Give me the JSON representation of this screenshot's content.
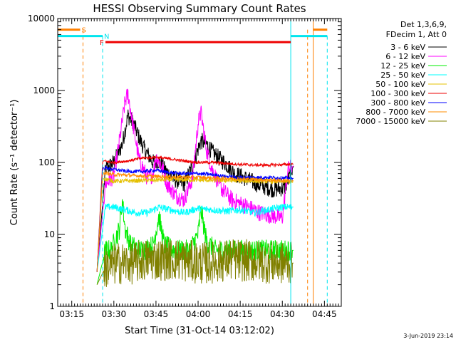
{
  "chart_data": {
    "type": "line",
    "title": "HESSI Observing Summary Count Rates",
    "xlabel": "Start Time (31-Oct-14 03:12:02)",
    "ylabel": "Count Rate (s⁻¹ detector⁻¹)",
    "yscale": "log",
    "xlim": [
      "03:10",
      "04:51"
    ],
    "ylim": [
      1,
      10000
    ],
    "x_ticks": [
      "03:15",
      "03:30",
      "03:45",
      "04:00",
      "04:15",
      "04:30",
      "04:45"
    ],
    "y_ticks": [
      "1",
      "10",
      "100",
      "1000",
      "10000"
    ],
    "legend_header": [
      "Det 1,3,6,9,",
      "FDecim 1, Att 0"
    ],
    "legend_position": "right",
    "footer_date": "3-Jun-2019 23:14",
    "flags": [
      {
        "label": "S",
        "color": "#ff7f00",
        "segments": [
          [
            "03:10",
            "03:18"
          ],
          [
            "04:41",
            "04:46"
          ]
        ],
        "y": 7000,
        "marker_lines": [
          "03:19",
          "04:39"
        ],
        "marker_style": "dashed"
      },
      {
        "label": "N",
        "color": "#00e5ee",
        "segments": [
          [
            "03:10",
            "03:26"
          ],
          [
            "04:33",
            "04:46"
          ]
        ],
        "y": 5700,
        "marker_lines": [
          "03:26",
          "04:46"
        ],
        "marker_style": "dashed"
      },
      {
        "label": "F",
        "color": "#ee0000",
        "segments": [
          [
            "03:27",
            "04:33"
          ]
        ],
        "y": 4700,
        "marker_lines": [],
        "marker_style": "solid"
      }
    ],
    "boundaries": [
      {
        "x": "03:10",
        "color": "#00e5ee"
      },
      {
        "x": "04:33",
        "color": "#00e5ee"
      },
      {
        "x": "04:41",
        "color": "#ff7f00"
      }
    ],
    "series": [
      {
        "name": "3 - 6 keV",
        "color": "#000000",
        "noise": 0.12,
        "x": [
          "03:24",
          "03:27",
          "03:30",
          "03:33",
          "03:35",
          "03:37",
          "03:39",
          "03:41",
          "03:44",
          "03:46",
          "03:48",
          "03:51",
          "03:55",
          "03:58",
          "04:01",
          "04:03",
          "04:05",
          "04:08",
          "04:10",
          "04:13",
          "04:17",
          "04:22",
          "04:27",
          "04:31",
          "04:34"
        ],
        "y": [
          3,
          80,
          100,
          180,
          450,
          350,
          220,
          150,
          100,
          105,
          80,
          60,
          50,
          90,
          200,
          180,
          140,
          110,
          95,
          70,
          60,
          48,
          42,
          45,
          90
        ]
      },
      {
        "name": "6 - 12 keV",
        "color": "#ff00ff",
        "noise": 0.12,
        "x": [
          "03:24",
          "03:27",
          "03:30",
          "03:32",
          "03:34",
          "03:35",
          "03:37",
          "03:39",
          "03:42",
          "03:44",
          "03:45",
          "03:47",
          "03:49",
          "03:52",
          "03:55",
          "03:58",
          "04:00",
          "04:01",
          "04:03",
          "04:05",
          "04:08",
          "04:12",
          "04:17",
          "04:22",
          "04:27",
          "04:30",
          "04:32",
          "04:34"
        ],
        "y": [
          3,
          50,
          65,
          200,
          700,
          900,
          300,
          110,
          60,
          70,
          120,
          90,
          50,
          35,
          30,
          60,
          350,
          500,
          150,
          80,
          45,
          30,
          25,
          20,
          18,
          17,
          80,
          90
        ]
      },
      {
        "name": "12 - 25 keV",
        "color": "#00ee00",
        "noise": 0.15,
        "x": [
          "03:24",
          "03:27",
          "03:29",
          "03:32",
          "03:33",
          "03:34",
          "03:36",
          "03:40",
          "03:44",
          "03:46",
          "03:48",
          "03:52",
          "03:57",
          "04:00",
          "04:01",
          "04:03",
          "04:06",
          "04:12",
          "04:20",
          "04:30",
          "04:34"
        ],
        "y": [
          2,
          6,
          6,
          12,
          30,
          12,
          7,
          6,
          7,
          18,
          7,
          6,
          6,
          10,
          22,
          8,
          6,
          6,
          6,
          6,
          6
        ]
      },
      {
        "name": "25 - 50 keV",
        "color": "#00ffff",
        "noise": 0.05,
        "x": [
          "03:24",
          "03:27",
          "03:30",
          "03:34",
          "03:38",
          "03:42",
          "03:46",
          "03:50",
          "03:55",
          "04:00",
          "04:05",
          "04:10",
          "04:15",
          "04:20",
          "04:25",
          "04:30",
          "04:34"
        ],
        "y": [
          3,
          24,
          24,
          22,
          20,
          20,
          24,
          22,
          20,
          23,
          22,
          21,
          22,
          20,
          22,
          24,
          24
        ]
      },
      {
        "name": "50 - 100 keV",
        "color": "#e5c000",
        "noise": 0.03,
        "x": [
          "03:24",
          "03:26",
          "03:30",
          "03:40",
          "03:50",
          "04:00",
          "04:10",
          "04:20",
          "04:30",
          "04:34"
        ],
        "y": [
          3,
          60,
          55,
          56,
          58,
          57,
          56,
          55,
          54,
          54
        ]
      },
      {
        "name": "100 - 300 keV",
        "color": "#ee0000",
        "noise": 0.02,
        "x": [
          "03:24",
          "03:26",
          "03:30",
          "03:35",
          "03:40",
          "03:45",
          "03:50",
          "03:55",
          "04:00",
          "04:05",
          "04:10",
          "04:15",
          "04:20",
          "04:25",
          "04:30",
          "04:34"
        ],
        "y": [
          3,
          105,
          100,
          105,
          115,
          118,
          112,
          105,
          100,
          100,
          97,
          94,
          92,
          92,
          93,
          95
        ]
      },
      {
        "name": "300 - 800 keV",
        "color": "#0000ff",
        "noise": 0.025,
        "x": [
          "03:24",
          "03:26",
          "03:30",
          "03:35",
          "03:40",
          "03:45",
          "03:50",
          "03:55",
          "04:00",
          "04:05",
          "04:10",
          "04:15",
          "04:20",
          "04:25",
          "04:30",
          "04:34"
        ],
        "y": [
          3,
          85,
          80,
          75,
          75,
          78,
          72,
          70,
          70,
          68,
          64,
          62,
          62,
          62,
          61,
          60
        ]
      },
      {
        "name": "800 - 7000 keV",
        "color": "#ff8c00",
        "noise": 0.025,
        "x": [
          "03:24",
          "03:26",
          "03:30",
          "03:40",
          "03:50",
          "04:00",
          "04:10",
          "04:20",
          "04:30",
          "04:34"
        ],
        "y": [
          3,
          72,
          68,
          65,
          63,
          62,
          60,
          58,
          56,
          56
        ]
      },
      {
        "name": "7000 - 15000 keV",
        "color": "#808000",
        "noise": 0.3,
        "x": [
          "03:24",
          "03:27",
          "03:32",
          "03:37",
          "03:42",
          "03:47",
          "03:52",
          "03:57",
          "04:02",
          "04:07",
          "04:12",
          "04:17",
          "04:22",
          "04:27",
          "04:32",
          "04:34"
        ],
        "y": [
          2,
          3.5,
          4,
          4,
          4.5,
          4.5,
          4.5,
          4.2,
          4,
          4.2,
          4.5,
          4.3,
          4.2,
          4,
          4,
          4
        ]
      }
    ]
  }
}
